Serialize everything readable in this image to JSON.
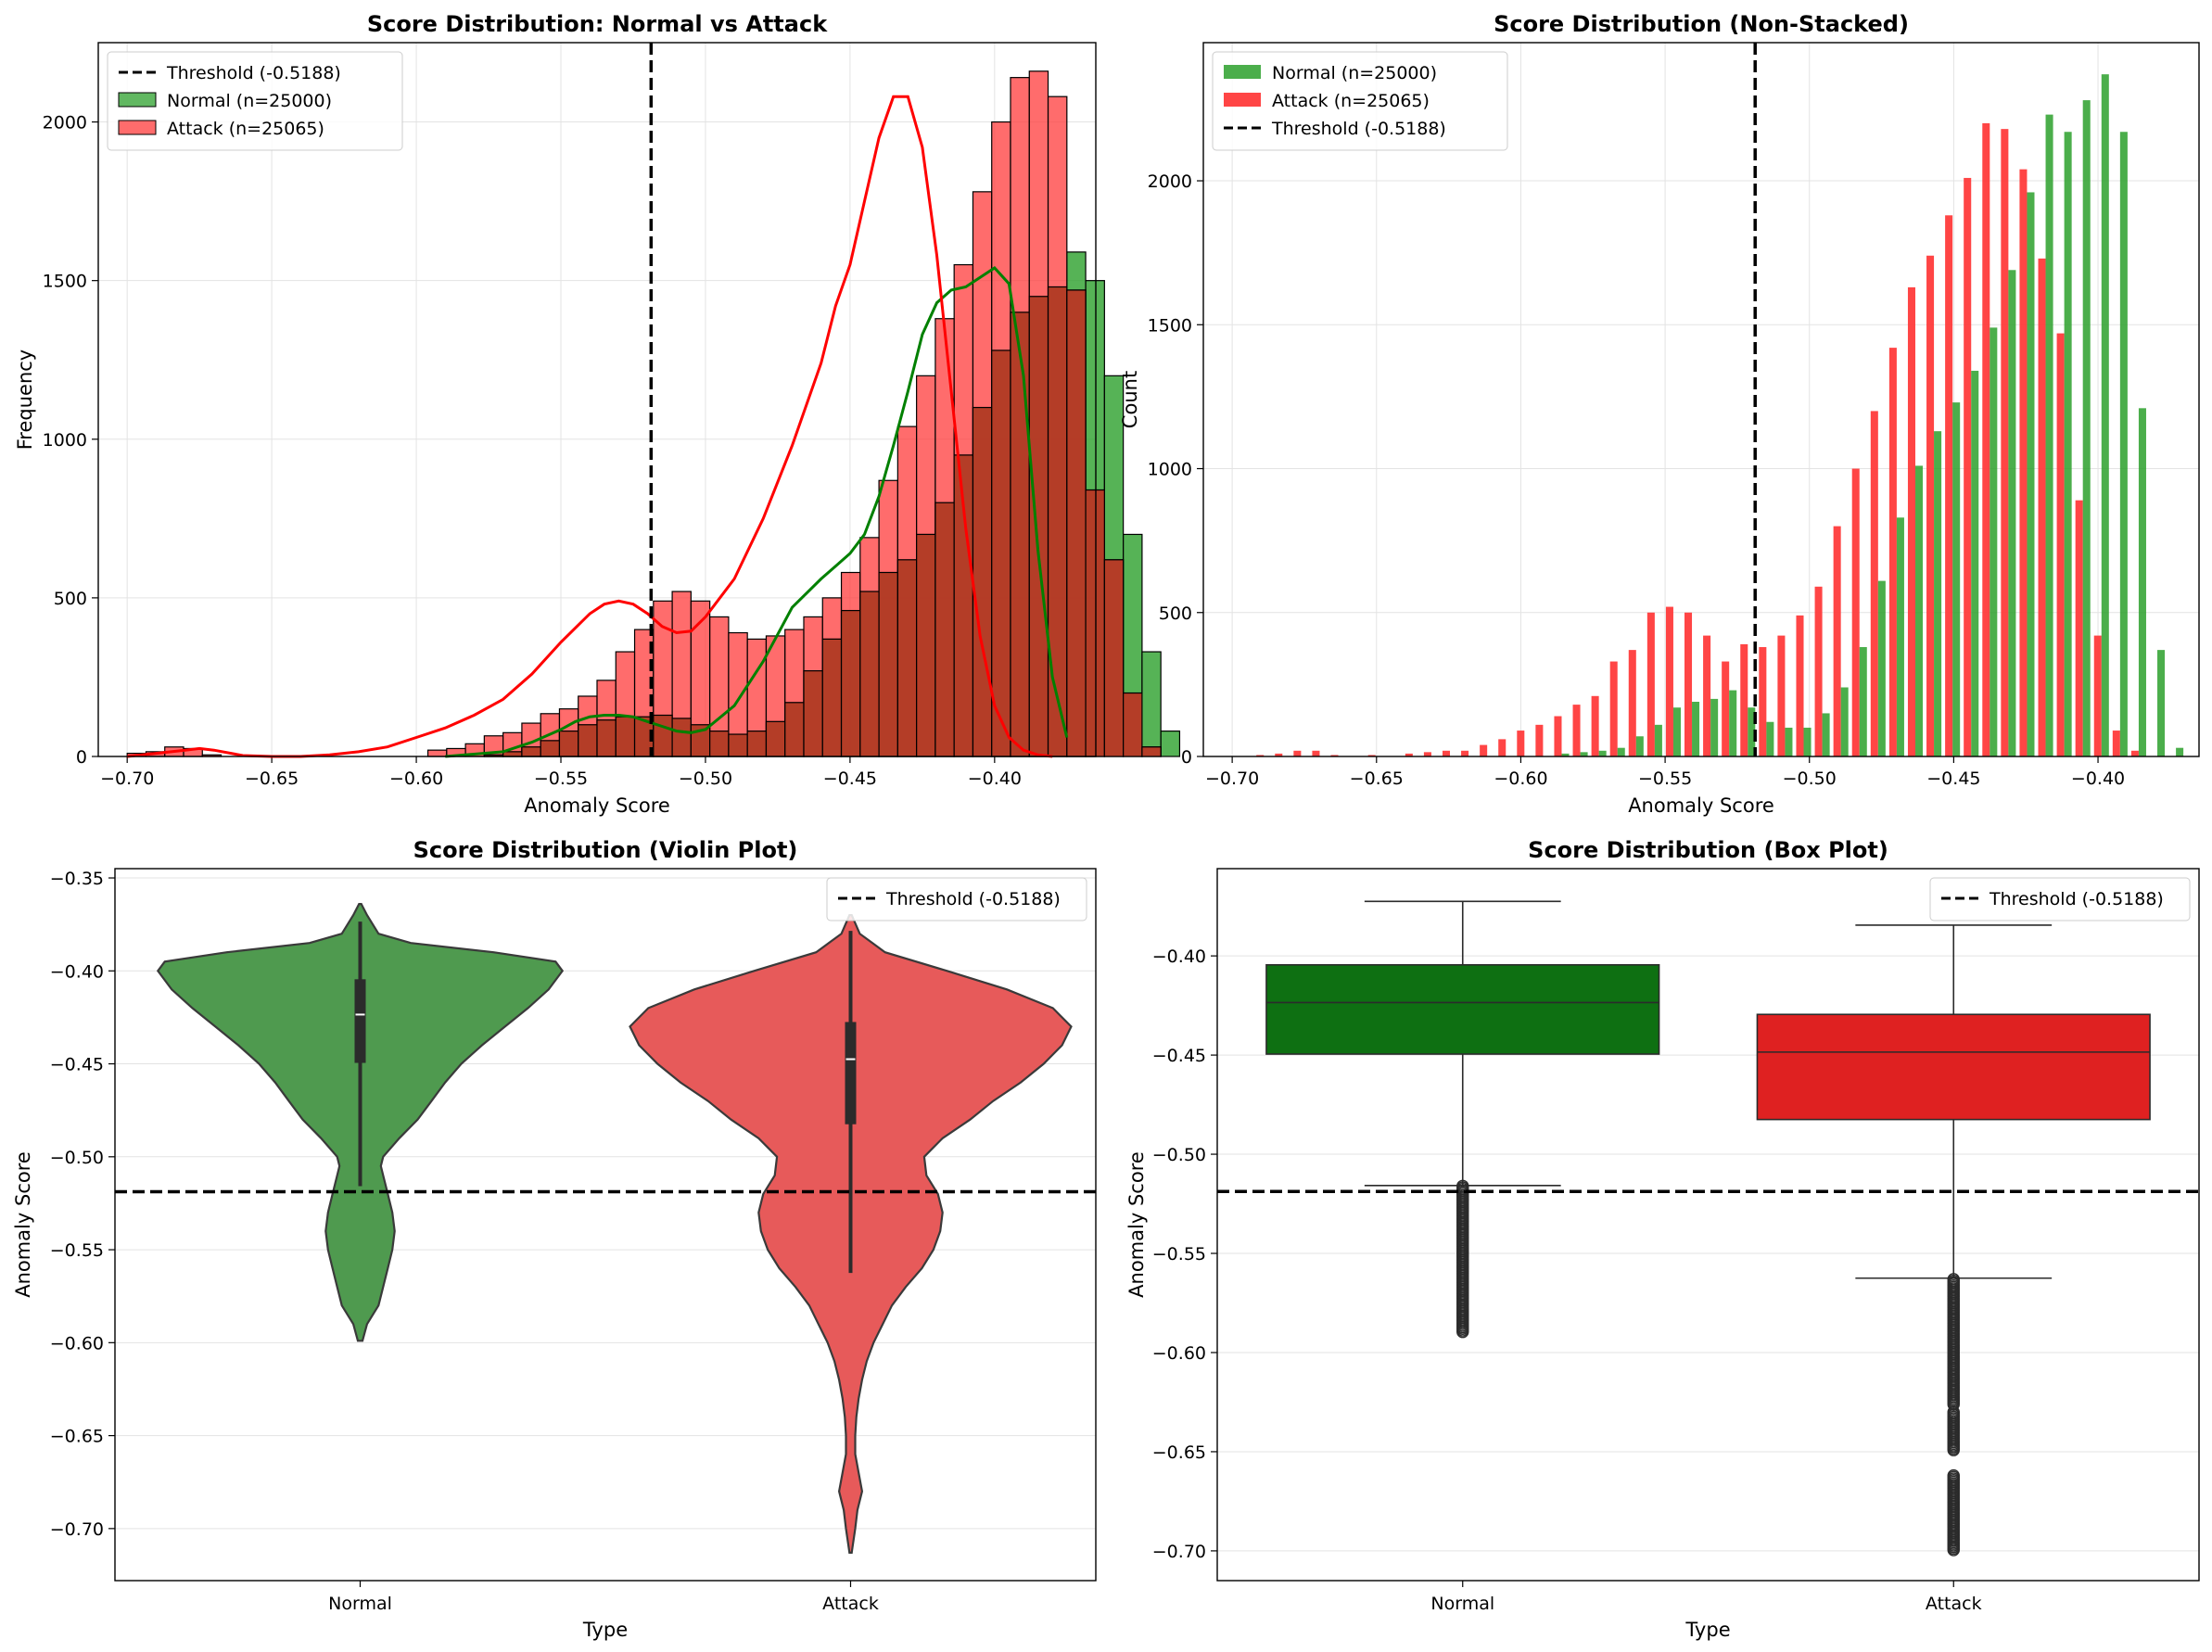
{
  "figure": {
    "background": "#ffffff"
  },
  "colors": {
    "normal": "#2ca02c",
    "normal_line": "#008000",
    "attack": "#ff3b3b",
    "attack_line": "#ff0000",
    "overlap": "#b03a25",
    "threshold": "#000000",
    "box_normal": "#0e7012",
    "box_attack": "#df2121",
    "violin_normal": "#4f9a4f",
    "violin_attack": "#e75a5a"
  },
  "chart_data": [
    {
      "id": "hist",
      "type": "bar",
      "title": "Score Distribution: Normal vs Attack",
      "xlabel": "Anomaly Score",
      "ylabel": "Frequency",
      "xlim": [
        -0.71,
        -0.365
      ],
      "ylim": [
        0,
        2250
      ],
      "xticks": [
        -0.7,
        -0.65,
        -0.6,
        -0.55,
        -0.5,
        -0.45,
        -0.4
      ],
      "xtick_labels": [
        "−0.70",
        "−0.65",
        "−0.60",
        "−0.55",
        "−0.50",
        "−0.45",
        "−0.40"
      ],
      "yticks": [
        0,
        500,
        1000,
        1500,
        2000
      ],
      "ytick_labels": [
        "0",
        "500",
        "1000",
        "1500",
        "2000"
      ],
      "grid": true,
      "legend": {
        "location": "top-left",
        "entries": [
          "Threshold (-0.5188)",
          "Normal (n=25000)",
          "Attack (n=25065)"
        ]
      },
      "threshold": -0.5188,
      "bin_edges_start": -0.7,
      "bin_width": 0.0065,
      "series": [
        {
          "name": "Normal (n=25000)",
          "color_key": "normal",
          "values": [
            0,
            0,
            0,
            0,
            0,
            0,
            0,
            0,
            0,
            0,
            0,
            0,
            0,
            0,
            0,
            0,
            0,
            0,
            0,
            5,
            15,
            30,
            50,
            80,
            100,
            115,
            125,
            125,
            130,
            120,
            100,
            80,
            70,
            80,
            110,
            170,
            270,
            370,
            460,
            520,
            580,
            620,
            700,
            800,
            950,
            1100,
            1280,
            1400,
            1450,
            1480,
            1590,
            1500,
            1200,
            700,
            330,
            80,
            0
          ]
        },
        {
          "name": "Attack (n=25065)",
          "color_key": "attack",
          "values": [
            10,
            15,
            30,
            25,
            5,
            0,
            0,
            0,
            0,
            0,
            0,
            0,
            0,
            0,
            0,
            0,
            20,
            25,
            40,
            65,
            75,
            105,
            135,
            150,
            190,
            240,
            330,
            400,
            490,
            520,
            490,
            440,
            390,
            370,
            380,
            400,
            440,
            500,
            580,
            690,
            870,
            1040,
            1200,
            1380,
            1550,
            1780,
            2000,
            2140,
            2160,
            2080,
            1470,
            840,
            620,
            200,
            30,
            0,
            0
          ]
        }
      ],
      "kde": [
        {
          "name": "Normal",
          "color_key": "normal_line",
          "x": [
            -0.59,
            -0.57,
            -0.56,
            -0.55,
            -0.545,
            -0.54,
            -0.535,
            -0.53,
            -0.525,
            -0.52,
            -0.515,
            -0.51,
            -0.505,
            -0.5,
            -0.49,
            -0.48,
            -0.47,
            -0.46,
            -0.455,
            -0.45,
            -0.445,
            -0.44,
            -0.435,
            -0.43,
            -0.425,
            -0.42,
            -0.415,
            -0.41,
            -0.405,
            -0.4,
            -0.395,
            -0.39,
            -0.385,
            -0.38,
            -0.375
          ],
          "y": [
            0,
            15,
            45,
            85,
            110,
            125,
            130,
            130,
            125,
            110,
            95,
            80,
            75,
            85,
            160,
            300,
            470,
            560,
            600,
            640,
            700,
            820,
            980,
            1150,
            1330,
            1430,
            1470,
            1480,
            1510,
            1540,
            1490,
            1200,
            650,
            250,
            60
          ]
        },
        {
          "name": "Attack",
          "color_key": "attack_line",
          "x": [
            -0.7,
            -0.69,
            -0.68,
            -0.675,
            -0.67,
            -0.66,
            -0.65,
            -0.64,
            -0.63,
            -0.62,
            -0.61,
            -0.6,
            -0.59,
            -0.58,
            -0.57,
            -0.56,
            -0.55,
            -0.54,
            -0.535,
            -0.53,
            -0.525,
            -0.52,
            -0.515,
            -0.51,
            -0.505,
            -0.5,
            -0.49,
            -0.48,
            -0.47,
            -0.46,
            -0.455,
            -0.45,
            -0.445,
            -0.44,
            -0.435,
            -0.43,
            -0.425,
            -0.42,
            -0.415,
            -0.41,
            -0.405,
            -0.4,
            -0.395,
            -0.39,
            -0.385,
            -0.38
          ],
          "y": [
            0,
            10,
            20,
            25,
            20,
            3,
            0,
            0,
            5,
            15,
            30,
            60,
            90,
            130,
            180,
            260,
            360,
            450,
            480,
            490,
            480,
            450,
            410,
            390,
            395,
            440,
            560,
            750,
            980,
            1240,
            1420,
            1550,
            1750,
            1950,
            2080,
            2080,
            1920,
            1580,
            1150,
            720,
            380,
            160,
            60,
            20,
            5,
            0
          ]
        }
      ]
    },
    {
      "id": "grouped",
      "type": "bar",
      "title": "Score Distribution (Non-Stacked)",
      "xlabel": "Anomaly Score",
      "ylabel": "Count",
      "xlim": [
        -0.71,
        -0.365
      ],
      "ylim": [
        0,
        2480
      ],
      "xticks": [
        -0.7,
        -0.65,
        -0.6,
        -0.55,
        -0.5,
        -0.45,
        -0.4
      ],
      "xtick_labels": [
        "−0.70",
        "−0.65",
        "−0.60",
        "−0.55",
        "−0.50",
        "−0.45",
        "−0.40"
      ],
      "yticks": [
        0,
        500,
        1000,
        1500,
        2000
      ],
      "ytick_labels": [
        "0",
        "500",
        "1000",
        "1500",
        "2000"
      ],
      "grid": true,
      "legend": {
        "location": "top-left",
        "entries": [
          "Normal (n=25000)",
          "Attack (n=25065)",
          "Threshold (-0.5188)"
        ]
      },
      "threshold": -0.5188,
      "bin_start": -0.6955,
      "bin_width": 0.00645,
      "series": [
        {
          "name": "Normal (n=25000)",
          "color_key": "normal",
          "values": [
            0,
            0,
            0,
            0,
            0,
            0,
            0,
            0,
            0,
            0,
            0,
            0,
            0,
            0,
            0,
            0,
            0,
            10,
            15,
            20,
            30,
            70,
            110,
            170,
            190,
            200,
            230,
            170,
            120,
            100,
            100,
            150,
            240,
            380,
            610,
            830,
            1010,
            1130,
            1230,
            1340,
            1490,
            1690,
            1960,
            2230,
            2170,
            2280,
            2370,
            2170,
            1210,
            370,
            30
          ]
        },
        {
          "name": "Attack (n=25065)",
          "color_key": "attack",
          "values": [
            0,
            5,
            10,
            20,
            20,
            5,
            0,
            5,
            0,
            10,
            15,
            20,
            20,
            40,
            60,
            90,
            110,
            140,
            180,
            210,
            330,
            370,
            500,
            520,
            500,
            420,
            330,
            390,
            380,
            420,
            490,
            590,
            800,
            1000,
            1200,
            1420,
            1630,
            1740,
            1880,
            2010,
            2200,
            2180,
            2040,
            1730,
            1470,
            890,
            420,
            90,
            20,
            0,
            0
          ]
        }
      ]
    },
    {
      "id": "violin",
      "type": "violin",
      "title": "Score Distribution (Violin Plot)",
      "xlabel": "Type",
      "ylabel": "Anomaly Score",
      "ylim": [
        -0.728,
        -0.345
      ],
      "yticks": [
        -0.7,
        -0.65,
        -0.6,
        -0.55,
        -0.5,
        -0.45,
        -0.4,
        -0.35
      ],
      "ytick_labels": [
        "−0.70",
        "−0.65",
        "−0.60",
        "−0.55",
        "−0.50",
        "−0.45",
        "−0.40",
        "−0.35"
      ],
      "categories": [
        "Normal",
        "Attack"
      ],
      "grid": true,
      "legend": {
        "location": "top-right",
        "entries": [
          "Threshold (-0.5188)"
        ]
      },
      "threshold": -0.5188,
      "groups": [
        {
          "name": "Normal",
          "color_key": "violin_normal",
          "y": [
            -0.599,
            -0.59,
            -0.58,
            -0.57,
            -0.56,
            -0.55,
            -0.54,
            -0.53,
            -0.52,
            -0.51,
            -0.505,
            -0.5,
            -0.49,
            -0.48,
            -0.47,
            -0.46,
            -0.45,
            -0.44,
            -0.43,
            -0.42,
            -0.41,
            -0.4,
            -0.395,
            -0.39,
            -0.385,
            -0.38,
            -0.37,
            -0.364
          ],
          "w": [
            0.01,
            0.03,
            0.08,
            0.1,
            0.12,
            0.14,
            0.15,
            0.14,
            0.12,
            0.1,
            0.09,
            0.1,
            0.17,
            0.25,
            0.31,
            0.37,
            0.44,
            0.53,
            0.63,
            0.73,
            0.82,
            0.88,
            0.85,
            0.58,
            0.22,
            0.08,
            0.03,
            0.005
          ],
          "q1": -0.4495,
          "median": -0.4235,
          "q3": -0.4045,
          "whisker_low": -0.5158,
          "whisker_high": -0.3735
        },
        {
          "name": "Attack",
          "color_key": "violin_attack",
          "y": [
            -0.713,
            -0.7,
            -0.69,
            -0.68,
            -0.67,
            -0.66,
            -0.65,
            -0.64,
            -0.63,
            -0.62,
            -0.61,
            -0.6,
            -0.59,
            -0.58,
            -0.57,
            -0.56,
            -0.55,
            -0.54,
            -0.53,
            -0.52,
            -0.51,
            -0.5,
            -0.49,
            -0.48,
            -0.47,
            -0.46,
            -0.45,
            -0.44,
            -0.43,
            -0.42,
            -0.41,
            -0.4,
            -0.39,
            -0.38,
            -0.37
          ],
          "w": [
            0.005,
            0.02,
            0.03,
            0.05,
            0.035,
            0.02,
            0.02,
            0.025,
            0.035,
            0.05,
            0.07,
            0.1,
            0.14,
            0.18,
            0.24,
            0.31,
            0.36,
            0.39,
            0.4,
            0.38,
            0.33,
            0.32,
            0.4,
            0.52,
            0.62,
            0.74,
            0.84,
            0.92,
            0.96,
            0.88,
            0.68,
            0.42,
            0.15,
            0.04,
            0.005
          ],
          "q1": -0.4825,
          "median": -0.4475,
          "q3": -0.4275,
          "whisker_low": -0.5625,
          "whisker_high": -0.3785
        }
      ]
    },
    {
      "id": "box",
      "type": "box",
      "title": "Score Distribution (Box Plot)",
      "xlabel": "Type",
      "ylabel": "Anomaly Score",
      "ylim": [
        -0.715,
        -0.356
      ],
      "yticks": [
        -0.7,
        -0.65,
        -0.6,
        -0.55,
        -0.5,
        -0.45,
        -0.4
      ],
      "ytick_labels": [
        "−0.70",
        "−0.65",
        "−0.60",
        "−0.55",
        "−0.50",
        "−0.45",
        "−0.40"
      ],
      "categories": [
        "Normal",
        "Attack"
      ],
      "grid": true,
      "legend": {
        "location": "top-right",
        "entries": [
          "Threshold (-0.5188)"
        ]
      },
      "threshold": -0.5188,
      "groups": [
        {
          "name": "Normal",
          "color_key": "box_normal",
          "q1": -0.4495,
          "median": -0.4235,
          "q3": -0.4045,
          "whisker_low": -0.5158,
          "whisker_high": -0.3725,
          "outlier_ranges": [
            [
              -0.59,
              -0.516
            ]
          ]
        },
        {
          "name": "Attack",
          "color_key": "box_attack",
          "q1": -0.4825,
          "median": -0.4485,
          "q3": -0.4295,
          "whisker_low": -0.5625,
          "whisker_high": -0.3845,
          "outlier_ranges": [
            [
              -0.627,
              -0.563
            ],
            [
              -0.65,
              -0.63
            ],
            [
              -0.7,
              -0.662
            ]
          ]
        }
      ]
    }
  ]
}
